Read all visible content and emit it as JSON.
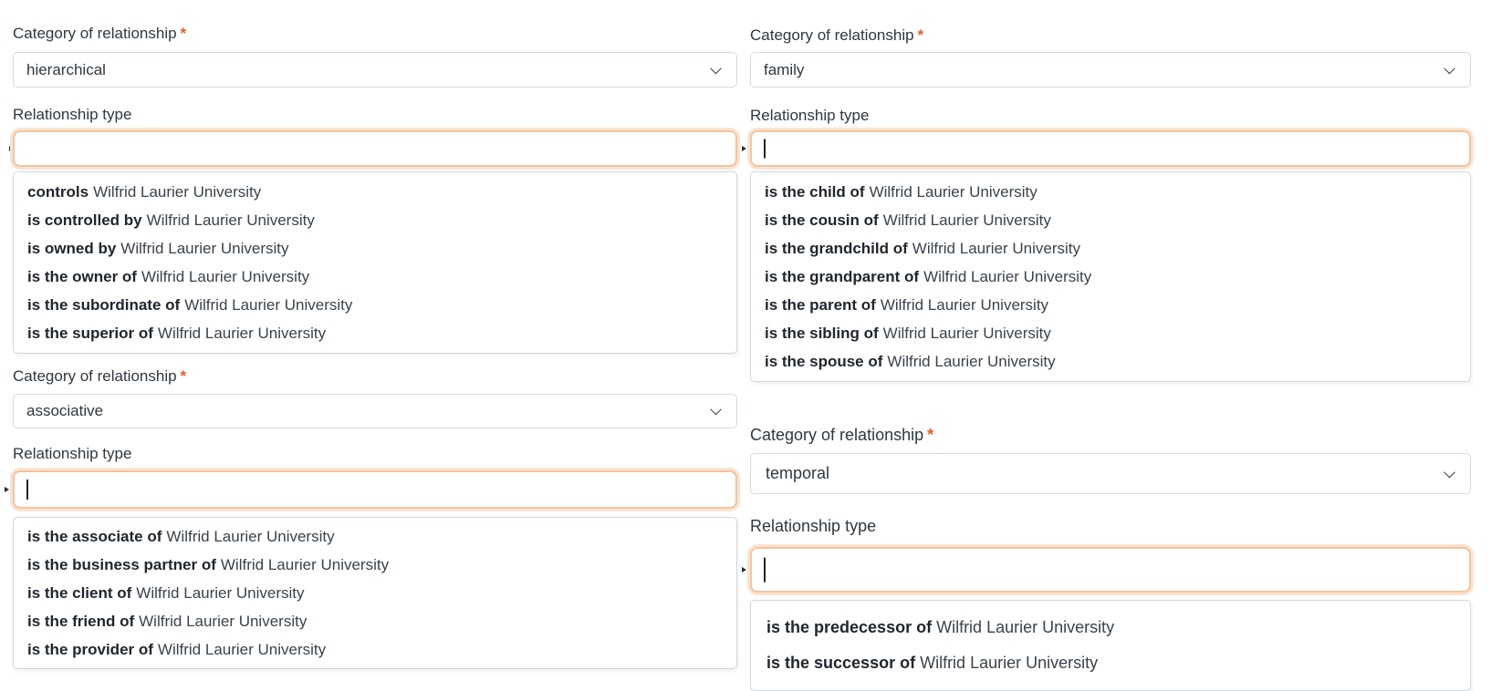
{
  "entity": "Wilfrid Laurier University",
  "colors": {
    "required_asterisk": "#ec5b24",
    "input_focus_border": "#f4c49f",
    "input_focus_ring": "#fbe3d1",
    "select_border": "#d5dade",
    "text": "#2f3740"
  },
  "sections": [
    {
      "category_label": "Category of relationship",
      "required_mark": "*",
      "category_value": "hierarchical",
      "type_label": "Relationship type",
      "type_value": "",
      "options": [
        {
          "rel": "controls",
          "target": "Wilfrid Laurier University"
        },
        {
          "rel": "is controlled by",
          "target": "Wilfrid Laurier University"
        },
        {
          "rel": "is owned by",
          "target": "Wilfrid Laurier University"
        },
        {
          "rel": "is the owner of",
          "target": "Wilfrid Laurier University"
        },
        {
          "rel": "is the subordinate of",
          "target": "Wilfrid Laurier University"
        },
        {
          "rel": "is the superior of",
          "target": "Wilfrid Laurier University"
        }
      ]
    },
    {
      "category_label": "Category of relationship",
      "required_mark": "*",
      "category_value": "family",
      "type_label": "Relationship type",
      "type_value": "",
      "options": [
        {
          "rel": "is the child of",
          "target": "Wilfrid Laurier University"
        },
        {
          "rel": "is the cousin of",
          "target": "Wilfrid Laurier University"
        },
        {
          "rel": "is the grandchild of",
          "target": "Wilfrid Laurier University"
        },
        {
          "rel": "is the grandparent of",
          "target": "Wilfrid Laurier University"
        },
        {
          "rel": "is the parent of",
          "target": "Wilfrid Laurier University"
        },
        {
          "rel": "is the sibling of",
          "target": "Wilfrid Laurier University"
        },
        {
          "rel": "is the spouse of",
          "target": "Wilfrid Laurier University"
        }
      ]
    },
    {
      "category_label": "Category of relationship",
      "required_mark": "*",
      "category_value": "associative",
      "type_label": "Relationship type",
      "type_value": "",
      "options": [
        {
          "rel": "is the associate of",
          "target": "Wilfrid Laurier University"
        },
        {
          "rel": "is the business partner of",
          "target": "Wilfrid Laurier University"
        },
        {
          "rel": "is the client of",
          "target": "Wilfrid Laurier University"
        },
        {
          "rel": "is the friend of",
          "target": "Wilfrid Laurier University"
        },
        {
          "rel": "is the provider of",
          "target": "Wilfrid Laurier University"
        }
      ]
    },
    {
      "category_label": "Category of relationship",
      "required_mark": "*",
      "category_value": "temporal",
      "type_label": "Relationship type",
      "type_value": "",
      "options": [
        {
          "rel": "is the predecessor of",
          "target": "Wilfrid Laurier University"
        },
        {
          "rel": "is the successor of",
          "target": "Wilfrid Laurier University"
        }
      ]
    }
  ]
}
